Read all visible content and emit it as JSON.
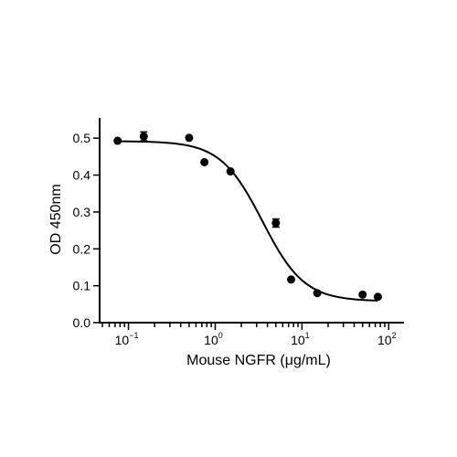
{
  "chart_data": {
    "type": "scatter",
    "xscale": "log",
    "xlabel": "Mouse NGFR (μg/mL)",
    "ylabel": "OD 450nm",
    "xlim": [
      0.05,
      150
    ],
    "ylim": [
      0.0,
      0.55
    ],
    "x_ticks": [
      {
        "base": "10",
        "exp": "−1",
        "value": 0.1
      },
      {
        "base": "10",
        "exp": "0",
        "value": 1
      },
      {
        "base": "10",
        "exp": "1",
        "value": 10
      },
      {
        "base": "10",
        "exp": "2",
        "value": 100
      }
    ],
    "y_ticks": [
      {
        "label": "0.0",
        "value": 0.0
      },
      {
        "label": "0.1",
        "value": 0.1
      },
      {
        "label": "0.2",
        "value": 0.2
      },
      {
        "label": "0.3",
        "value": 0.3
      },
      {
        "label": "0.4",
        "value": 0.4
      },
      {
        "label": "0.5",
        "value": 0.5
      }
    ],
    "points": [
      {
        "x": 0.075,
        "y": 0.493,
        "err": 0
      },
      {
        "x": 0.15,
        "y": 0.505,
        "err": 0.012
      },
      {
        "x": 0.5,
        "y": 0.501,
        "err": 0
      },
      {
        "x": 0.75,
        "y": 0.435,
        "err": 0
      },
      {
        "x": 1.5,
        "y": 0.41,
        "err": 0
      },
      {
        "x": 5,
        "y": 0.27,
        "err": 0.011
      },
      {
        "x": 7.5,
        "y": 0.117,
        "err": 0
      },
      {
        "x": 15,
        "y": 0.08,
        "err": 0
      },
      {
        "x": 50,
        "y": 0.076,
        "err": 0
      },
      {
        "x": 75,
        "y": 0.07,
        "err": 0
      }
    ],
    "fit": {
      "model": "4PL",
      "top": 0.492,
      "bottom": 0.058,
      "ec50": 3.5,
      "hill": 1.8
    },
    "grid": false,
    "legend": "none",
    "marker_color": "#000000"
  }
}
